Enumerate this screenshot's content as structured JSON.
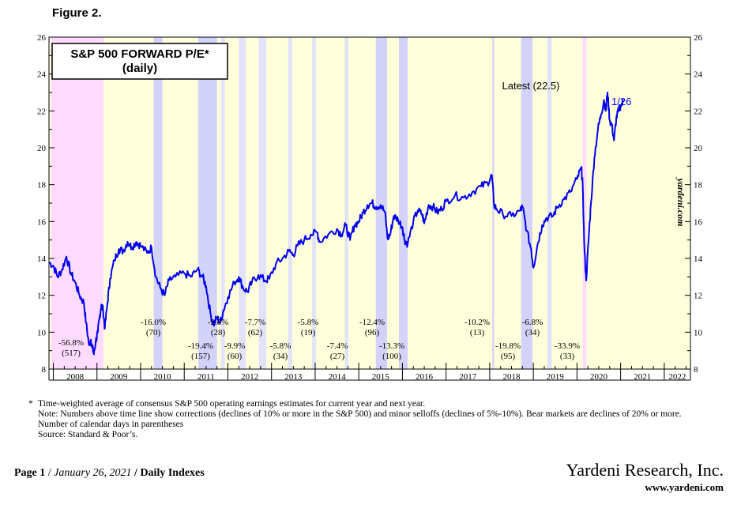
{
  "figure_label": "Figure 2.",
  "chart_data": {
    "type": "line",
    "title": "S&P 500 FORWARD P/E*",
    "subtitle": "(daily)",
    "ylim": [
      8,
      26
    ],
    "yticks": [
      8,
      10,
      12,
      14,
      16,
      18,
      20,
      22,
      24,
      26
    ],
    "x_range": [
      2007.9,
      2022.6
    ],
    "year_labels": [
      "2008",
      "2009",
      "2010",
      "2011",
      "2012",
      "2013",
      "2014",
      "2015",
      "2016",
      "2017",
      "2018",
      "2019",
      "2020",
      "2021",
      "2022"
    ],
    "latest_label": "Latest (22.5)",
    "latest_date": "1/26",
    "watermark": "yardeni.com",
    "colors": {
      "line": "#0000ee",
      "plot_bg": "#ffffdc",
      "bear": "#ffdcff",
      "correction": "#d2d2fa",
      "selloff": "#e2e2f8"
    },
    "series": [
      {
        "values": [
          [
            2007.9,
            13.8
          ],
          [
            2008.0,
            13.6
          ],
          [
            2008.1,
            13.0
          ],
          [
            2008.2,
            13.4
          ],
          [
            2008.3,
            14.1
          ],
          [
            2008.4,
            13.2
          ],
          [
            2008.5,
            12.7
          ],
          [
            2008.6,
            12.0
          ],
          [
            2008.7,
            11.6
          ],
          [
            2008.75,
            10.5
          ],
          [
            2008.82,
            9.3
          ],
          [
            2008.86,
            9.6
          ],
          [
            2008.9,
            9.1
          ],
          [
            2008.93,
            8.8
          ],
          [
            2008.97,
            9.5
          ],
          [
            2009.02,
            10.0
          ],
          [
            2009.06,
            10.8
          ],
          [
            2009.1,
            11.5
          ],
          [
            2009.14,
            11.2
          ],
          [
            2009.18,
            10.2
          ],
          [
            2009.24,
            11.6
          ],
          [
            2009.3,
            12.9
          ],
          [
            2009.4,
            13.9
          ],
          [
            2009.5,
            14.5
          ],
          [
            2009.6,
            14.4
          ],
          [
            2009.7,
            14.9
          ],
          [
            2009.8,
            14.6
          ],
          [
            2009.9,
            14.9
          ],
          [
            2010.0,
            14.7
          ],
          [
            2010.15,
            14.3
          ],
          [
            2010.25,
            14.6
          ],
          [
            2010.35,
            13.0
          ],
          [
            2010.45,
            12.4
          ],
          [
            2010.55,
            12.0
          ],
          [
            2010.65,
            12.8
          ],
          [
            2010.8,
            13.0
          ],
          [
            2011.0,
            13.2
          ],
          [
            2011.15,
            13.0
          ],
          [
            2011.3,
            13.4
          ],
          [
            2011.42,
            13.0
          ],
          [
            2011.5,
            12.5
          ],
          [
            2011.6,
            11.0
          ],
          [
            2011.67,
            10.4
          ],
          [
            2011.75,
            10.8
          ],
          [
            2011.82,
            10.5
          ],
          [
            2011.9,
            11.2
          ],
          [
            2012.0,
            11.9
          ],
          [
            2012.15,
            12.7
          ],
          [
            2012.25,
            13.0
          ],
          [
            2012.35,
            12.4
          ],
          [
            2012.45,
            12.2
          ],
          [
            2012.55,
            12.7
          ],
          [
            2012.7,
            13.1
          ],
          [
            2012.85,
            12.8
          ],
          [
            2012.95,
            12.9
          ],
          [
            2013.1,
            13.7
          ],
          [
            2013.25,
            14.0
          ],
          [
            2013.4,
            14.4
          ],
          [
            2013.5,
            14.2
          ],
          [
            2013.6,
            14.7
          ],
          [
            2013.75,
            15.0
          ],
          [
            2013.9,
            15.3
          ],
          [
            2014.05,
            15.4
          ],
          [
            2014.1,
            14.9
          ],
          [
            2014.3,
            15.3
          ],
          [
            2014.5,
            15.6
          ],
          [
            2014.6,
            15.3
          ],
          [
            2014.7,
            15.8
          ],
          [
            2014.8,
            15.0
          ],
          [
            2014.9,
            15.8
          ],
          [
            2015.0,
            16.0
          ],
          [
            2015.1,
            16.5
          ],
          [
            2015.2,
            16.9
          ],
          [
            2015.3,
            17.0
          ],
          [
            2015.4,
            16.8
          ],
          [
            2015.5,
            16.9
          ],
          [
            2015.6,
            16.5
          ],
          [
            2015.66,
            15.1
          ],
          [
            2015.72,
            15.3
          ],
          [
            2015.8,
            16.3
          ],
          [
            2015.9,
            16.1
          ],
          [
            2016.0,
            15.7
          ],
          [
            2016.05,
            15.0
          ],
          [
            2016.12,
            14.8
          ],
          [
            2016.25,
            16.0
          ],
          [
            2016.35,
            16.6
          ],
          [
            2016.45,
            16.4
          ],
          [
            2016.5,
            15.9
          ],
          [
            2016.6,
            16.9
          ],
          [
            2016.7,
            16.8
          ],
          [
            2016.8,
            16.5
          ],
          [
            2016.9,
            16.7
          ],
          [
            2017.0,
            17.1
          ],
          [
            2017.2,
            17.4
          ],
          [
            2017.4,
            17.3
          ],
          [
            2017.6,
            17.6
          ],
          [
            2017.8,
            17.9
          ],
          [
            2017.95,
            18.1
          ],
          [
            2018.05,
            18.5
          ],
          [
            2018.1,
            16.9
          ],
          [
            2018.15,
            16.7
          ],
          [
            2018.3,
            16.4
          ],
          [
            2018.5,
            16.3
          ],
          [
            2018.7,
            16.6
          ],
          [
            2018.75,
            16.8
          ],
          [
            2018.85,
            15.5
          ],
          [
            2018.95,
            14.5
          ],
          [
            2019.0,
            13.5
          ],
          [
            2019.1,
            14.8
          ],
          [
            2019.2,
            15.8
          ],
          [
            2019.3,
            16.2
          ],
          [
            2019.45,
            16.3
          ],
          [
            2019.55,
            16.8
          ],
          [
            2019.7,
            17.2
          ],
          [
            2019.85,
            17.6
          ],
          [
            2020.0,
            18.3
          ],
          [
            2020.1,
            18.9
          ],
          [
            2020.13,
            18.0
          ],
          [
            2020.17,
            14.5
          ],
          [
            2020.21,
            12.8
          ],
          [
            2020.26,
            14.8
          ],
          [
            2020.32,
            17.0
          ],
          [
            2020.4,
            19.5
          ],
          [
            2020.48,
            21.0
          ],
          [
            2020.55,
            21.8
          ],
          [
            2020.62,
            22.6
          ],
          [
            2020.66,
            22.0
          ],
          [
            2020.7,
            23.0
          ],
          [
            2020.75,
            21.5
          ],
          [
            2020.8,
            21.2
          ],
          [
            2020.85,
            20.4
          ],
          [
            2020.9,
            21.6
          ],
          [
            2020.95,
            22.0
          ],
          [
            2021.0,
            22.3
          ],
          [
            2021.07,
            22.5
          ]
        ]
      }
    ],
    "shaded_periods": [
      {
        "kind": "bear",
        "start": 2007.95,
        "end": 2009.15,
        "pct": "-56.8%",
        "days": "(517)"
      },
      {
        "kind": "correction",
        "start": 2010.3,
        "end": 2010.5,
        "pct": "-16.0%",
        "days": "(70)"
      },
      {
        "kind": "correction",
        "start": 2011.32,
        "end": 2011.75,
        "pct": "-19.4%",
        "days": "(157)"
      },
      {
        "kind": "selloff",
        "start": 2011.84,
        "end": 2011.93,
        "pct": "-9.8%",
        "days": "(28)"
      },
      {
        "kind": "selloff",
        "start": 2012.25,
        "end": 2012.41,
        "pct": "-9.9%",
        "days": "(60)"
      },
      {
        "kind": "selloff",
        "start": 2012.71,
        "end": 2012.88,
        "pct": "-7.7%",
        "days": "(62)"
      },
      {
        "kind": "selloff",
        "start": 2013.38,
        "end": 2013.47,
        "pct": "-5.8%",
        "days": "(34)"
      },
      {
        "kind": "selloff",
        "start": 2013.93,
        "end": 2014.02,
        "pct": "-5.8%",
        "days": "(19)"
      },
      {
        "kind": "selloff",
        "start": 2014.68,
        "end": 2014.76,
        "pct": "-7.4%",
        "days": "(27)"
      },
      {
        "kind": "correction",
        "start": 2015.39,
        "end": 2015.65,
        "pct": "-12.4%",
        "days": "(96)"
      },
      {
        "kind": "correction",
        "start": 2015.92,
        "end": 2016.12,
        "pct": "-13.3%",
        "days": "(100)"
      },
      {
        "kind": "correction",
        "start": 2018.06,
        "end": 2018.1,
        "pct": "-10.2%",
        "days": "(13)"
      },
      {
        "kind": "correction",
        "start": 2018.72,
        "end": 2018.98,
        "pct": "-19.8%",
        "days": "(95)"
      },
      {
        "kind": "selloff",
        "start": 2019.32,
        "end": 2019.42,
        "pct": "-6.8%",
        "days": "(34)"
      },
      {
        "kind": "bear",
        "start": 2020.13,
        "end": 2020.22,
        "pct": "-33.9%",
        "days": "(33)"
      }
    ]
  },
  "notes": {
    "star": "*",
    "line1": "Time-weighted average of consensus S&P 500 operating earnings estimates for current year and next year.",
    "line2": "Note: Numbers above time line show corrections (declines of 10% or more in the S&P 500) and minor selloffs (declines of 5%-10%). Bear markets are declines of 20% or more. Number of calendar days in parentheses",
    "line3": "Source: Standard & Poor’s."
  },
  "footer": {
    "page": "Page 1",
    "sep1": " / ",
    "date": "January 26, 2021",
    "sep2": " / ",
    "section": " Daily Indexes",
    "company": "Yardeni Research, Inc.",
    "website": "www.yardeni.com"
  }
}
